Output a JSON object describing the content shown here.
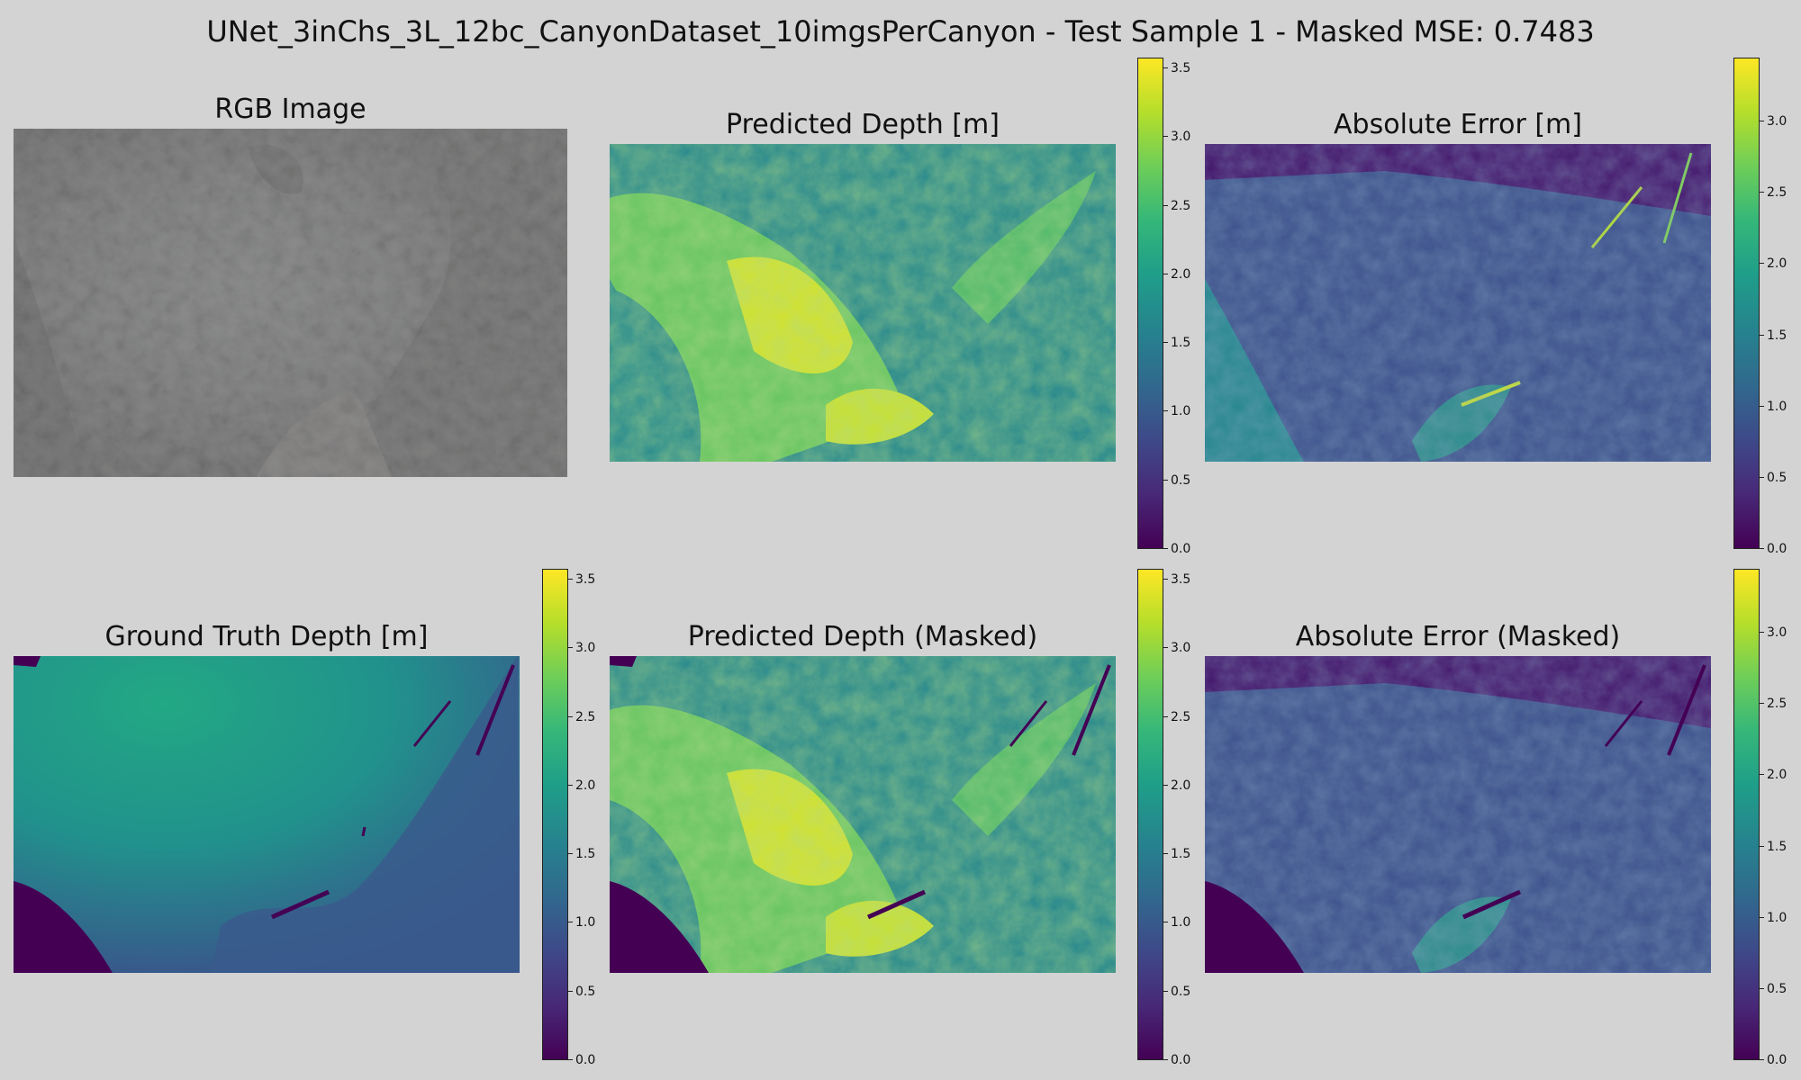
{
  "figure": {
    "title": "UNet_3inChs_3L_12bc_CanyonDataset_10imgsPerCanyon - Test Sample 1 - Masked MSE: 0.7483"
  },
  "panels": {
    "rgb": {
      "title": "RGB Image"
    },
    "pred": {
      "title": "Predicted Depth [m]",
      "colorbar_ticks": [
        "0.0",
        "0.5",
        "1.0",
        "1.5",
        "2.0",
        "2.5",
        "3.0",
        "3.5"
      ],
      "colorbar_max": 3.58
    },
    "err": {
      "title": "Absolute Error [m]",
      "colorbar_ticks": [
        "0.0",
        "0.5",
        "1.0",
        "1.5",
        "2.0",
        "2.5",
        "3.0"
      ],
      "colorbar_max": 3.45
    },
    "gt": {
      "title": "Ground Truth Depth [m]",
      "colorbar_ticks": [
        "0.0",
        "0.5",
        "1.0",
        "1.5",
        "2.0",
        "2.5",
        "3.0",
        "3.5"
      ],
      "colorbar_max": 3.58
    },
    "pred_masked": {
      "title": "Predicted Depth (Masked)",
      "colorbar_ticks": [
        "0.0",
        "0.5",
        "1.0",
        "1.5",
        "2.0",
        "2.5",
        "3.0",
        "3.5"
      ],
      "colorbar_max": 3.58
    },
    "err_masked": {
      "title": "Absolute Error (Masked)",
      "colorbar_ticks": [
        "0.0",
        "0.5",
        "1.0",
        "1.5",
        "2.0",
        "2.5",
        "3.0"
      ],
      "colorbar_max": 3.45
    }
  },
  "colormap": "viridis",
  "colors": {
    "background": "#d3d3d3",
    "viridis_low": "#440154",
    "viridis_high": "#fde725"
  }
}
